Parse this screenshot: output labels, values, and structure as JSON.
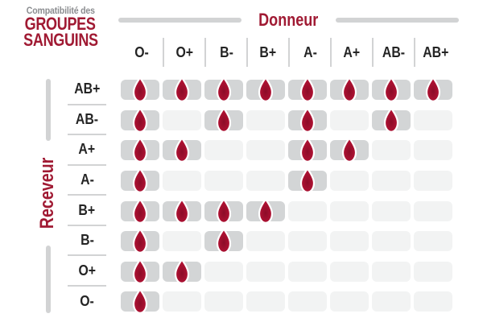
{
  "title": {
    "prefix": "Compatibilité des",
    "line1": "GROUPES",
    "line2": "SANGUINS"
  },
  "axes": {
    "donor_label": "Donneur",
    "receiver_label": "Receveur"
  },
  "icons": {
    "compatible": "blood-drop-icon"
  },
  "chart_data": {
    "type": "table",
    "title": "Compatibilité des groupes sanguins",
    "columns_axis_label": "Donneur",
    "rows_axis_label": "Receveur",
    "donors": [
      "O-",
      "O+",
      "B-",
      "B+",
      "A-",
      "A+",
      "AB-",
      "AB+"
    ],
    "receivers": [
      "AB+",
      "AB-",
      "A+",
      "A-",
      "B+",
      "B-",
      "O+",
      "O-"
    ],
    "cell_true_marker": "blood-drop-icon",
    "matrix": [
      [
        1,
        1,
        1,
        1,
        1,
        1,
        1,
        1
      ],
      [
        1,
        0,
        1,
        0,
        1,
        0,
        1,
        0
      ],
      [
        1,
        1,
        0,
        0,
        1,
        1,
        0,
        0
      ],
      [
        1,
        0,
        0,
        0,
        1,
        0,
        0,
        0
      ],
      [
        1,
        1,
        1,
        1,
        0,
        0,
        0,
        0
      ],
      [
        1,
        0,
        1,
        0,
        0,
        0,
        0,
        0
      ],
      [
        1,
        1,
        0,
        0,
        0,
        0,
        0,
        0
      ],
      [
        1,
        0,
        0,
        0,
        0,
        0,
        0,
        0
      ]
    ]
  },
  "colors": {
    "brand_red": "#A01A33",
    "drop_red": "#AD1132",
    "drop_dark_center": "#8C0C28",
    "drop_edge": "#B5143A",
    "line_gray": "#D2D3D4",
    "filled_cell_bg": "#D3D5D6",
    "empty_cell_bg": "#F2F3F3",
    "label_text": "#242424",
    "subtitle_gray": "#8B8D90",
    "background": "#FFFFFF"
  }
}
